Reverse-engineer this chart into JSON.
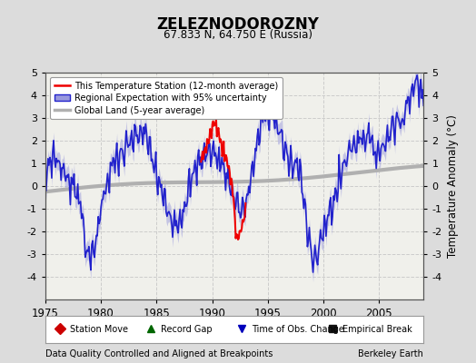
{
  "title": "ZELEZNODOROZNY",
  "subtitle": "67.833 N, 64.750 E (Russia)",
  "ylabel": "Temperature Anomaly (°C)",
  "xlim": [
    1975,
    2009
  ],
  "ylim": [
    -5,
    5
  ],
  "yticks": [
    -4,
    -3,
    -2,
    -1,
    0,
    1,
    2,
    3,
    4,
    5
  ],
  "xticks": [
    1975,
    1980,
    1985,
    1990,
    1995,
    2000,
    2005
  ],
  "footer_left": "Data Quality Controlled and Aligned at Breakpoints",
  "footer_right": "Berkeley Earth",
  "bg_color": "#dcdcdc",
  "plot_bg_color": "#f0f0eb",
  "regional_color": "#2222cc",
  "regional_fill_color": "#9999dd",
  "station_color": "#ee0000",
  "global_color": "#b0b0b0",
  "global_lw": 3.0,
  "regional_lw": 1.2,
  "station_lw": 1.5
}
